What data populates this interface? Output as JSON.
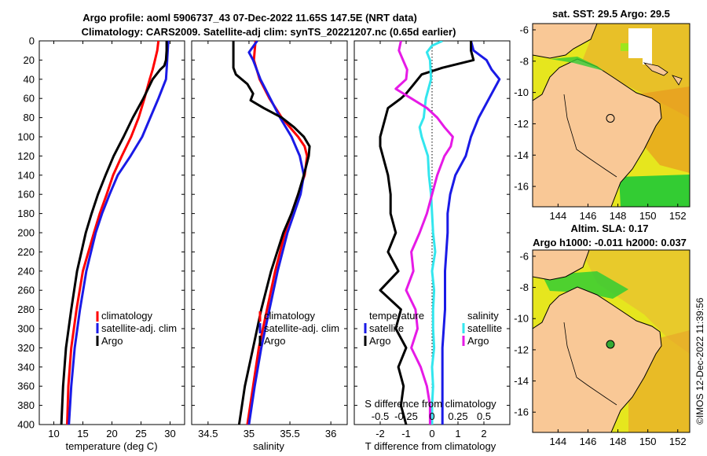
{
  "title": {
    "line1": "Argo profile: aoml 5906737_43 07-Dec-2022 11.65S 147.5E (NRT data)",
    "line2": "Climatology: CARS2009. Satellite-adj clim: synTS_20221207.nc (0.65d earlier)"
  },
  "timestamp": "©IMOS 12-Dec-2022 11:39:56",
  "colors": {
    "climatology": "#ff0000",
    "satellite": "#1a1ae6",
    "argo": "#000000",
    "salinity_diff": "#33e6ee",
    "argo_salinity_diff": "#e61ae6",
    "land": "#f9c896",
    "sst_base": "#e6e61e",
    "sst_green": "#33cc33",
    "sst_orange": "#e89a1e"
  },
  "depth_axis": {
    "ticks": [
      "0",
      "20",
      "40",
      "60",
      "80",
      "100",
      "120",
      "140",
      "160",
      "180",
      "200",
      "220",
      "240",
      "260",
      "280",
      "300",
      "320",
      "340",
      "360",
      "380",
      "400"
    ],
    "range": [
      0,
      400
    ]
  },
  "chart_data": [
    {
      "type": "line",
      "id": "temperature",
      "xlabel": "temperature (deg C)",
      "xlim": [
        7.5,
        32.5
      ],
      "xticks": [
        "10",
        "15",
        "20",
        "25",
        "30"
      ],
      "ylim": [
        0,
        400
      ],
      "legend": [
        "climatology",
        "satellite-adj. clim",
        "Argo"
      ],
      "series": [
        {
          "name": "climatology",
          "color_key": "climatology",
          "depth": [
            0,
            10,
            20,
            30,
            40,
            60,
            80,
            100,
            120,
            140,
            160,
            180,
            200,
            240,
            280,
            320,
            360,
            400
          ],
          "values": [
            28.0,
            27.8,
            27.4,
            27.0,
            26.5,
            25.6,
            24.6,
            23.3,
            21.7,
            20.2,
            19.1,
            17.9,
            16.9,
            15.0,
            13.9,
            13.0,
            12.5,
            12.3
          ]
        },
        {
          "name": "satellite-adj. clim",
          "color_key": "satellite",
          "depth": [
            0,
            10,
            20,
            30,
            40,
            60,
            80,
            100,
            120,
            140,
            160,
            180,
            200,
            240,
            280,
            320,
            360,
            400
          ],
          "values": [
            29.7,
            29.6,
            29.5,
            29.4,
            29.3,
            28.0,
            26.6,
            25.2,
            23.2,
            21.0,
            19.6,
            18.3,
            17.2,
            15.6,
            14.5,
            13.6,
            13.0,
            12.6
          ]
        },
        {
          "name": "Argo",
          "color_key": "argo",
          "depth": [
            0,
            10,
            20,
            26,
            30,
            40,
            50,
            60,
            80,
            100,
            120,
            140,
            160,
            180,
            200,
            240,
            280,
            320,
            360,
            400
          ],
          "values": [
            29.4,
            29.4,
            29.3,
            29.0,
            28.3,
            27.0,
            26.2,
            25.4,
            23.6,
            22.0,
            20.3,
            18.9,
            17.6,
            16.5,
            15.5,
            14.0,
            13.0,
            12.1,
            11.6,
            11.3
          ]
        }
      ]
    },
    {
      "type": "line",
      "id": "salinity",
      "xlabel": "salinity",
      "xlim": [
        34.3,
        36.2
      ],
      "xticks": [
        "34.5",
        "35",
        "35.5",
        "36"
      ],
      "ylim": [
        0,
        400
      ],
      "legend": [
        "climatology",
        "satellite-adj. clim",
        "Argo"
      ],
      "series": [
        {
          "name": "climatology",
          "color_key": "climatology",
          "depth": [
            0,
            10,
            20,
            40,
            60,
            80,
            100,
            110,
            120,
            140,
            160,
            180,
            200,
            240,
            280,
            320,
            360,
            400
          ],
          "values": [
            35.08,
            35.07,
            35.06,
            35.13,
            35.25,
            35.4,
            35.6,
            35.68,
            35.71,
            35.68,
            35.6,
            35.52,
            35.44,
            35.32,
            35.22,
            35.12,
            35.05,
            34.98
          ]
        },
        {
          "name": "satellite-adj. clim",
          "color_key": "satellite",
          "depth": [
            0,
            6,
            12,
            20,
            40,
            60,
            80,
            100,
            120,
            140,
            160,
            180,
            200,
            240,
            280,
            320,
            360,
            400
          ],
          "values": [
            35.1,
            35.05,
            35.0,
            35.05,
            35.14,
            35.26,
            35.38,
            35.52,
            35.62,
            35.67,
            35.63,
            35.55,
            35.47,
            35.35,
            35.25,
            35.15,
            35.07,
            35.0
          ]
        },
        {
          "name": "Argo",
          "color_key": "argo",
          "depth": [
            0,
            10,
            20,
            28,
            35,
            45,
            55,
            62,
            70,
            80,
            90,
            100,
            110,
            120,
            130,
            140,
            160,
            180,
            200,
            240,
            280,
            320,
            360,
            400
          ],
          "values": [
            34.81,
            34.81,
            34.81,
            34.81,
            34.84,
            34.98,
            35.05,
            35.02,
            35.18,
            35.4,
            35.55,
            35.67,
            35.74,
            35.73,
            35.7,
            35.67,
            35.6,
            35.52,
            35.42,
            35.27,
            35.15,
            35.05,
            34.95,
            34.88
          ]
        }
      ]
    },
    {
      "type": "line",
      "id": "difference",
      "xlabel": "T difference from climatology",
      "xlim": [
        -3,
        3
      ],
      "xticks": [
        "-2",
        "-1",
        "0",
        "1",
        "2"
      ],
      "top_label": "S difference from climatology",
      "top_ticks": [
        "-0.5",
        "-0.25",
        "0",
        "0.25",
        "0.5"
      ],
      "ylim": [
        0,
        400
      ],
      "legend": [
        "temperature",
        "satellite",
        "Argo",
        "salinity",
        "satellite",
        "Argo"
      ],
      "series": [
        {
          "name": "temperature satellite",
          "color_key": "satellite",
          "depth": [
            0,
            10,
            20,
            30,
            40,
            60,
            80,
            100,
            120,
            140,
            160,
            180,
            200,
            240,
            280,
            320,
            360,
            400
          ],
          "values": [
            1.5,
            1.6,
            2.1,
            2.3,
            2.6,
            2.2,
            1.8,
            1.5,
            1.3,
            0.9,
            0.7,
            0.6,
            0.6,
            0.5,
            0.5,
            0.4,
            0.4,
            0.4
          ]
        },
        {
          "name": "temperature Argo",
          "color_key": "argo",
          "depth": [
            0,
            10,
            20,
            28,
            35,
            45,
            55,
            60,
            70,
            80,
            90,
            100,
            110,
            120,
            140,
            160,
            180,
            200,
            220,
            240,
            260,
            280,
            300,
            320,
            340,
            360,
            380,
            400
          ],
          "values": [
            1.5,
            1.5,
            1.6,
            0.4,
            -0.4,
            -0.7,
            -1.0,
            -1.2,
            -1.7,
            -1.8,
            -1.9,
            -2.0,
            -2.0,
            -1.9,
            -1.7,
            -1.6,
            -1.6,
            -1.4,
            -1.7,
            -1.3,
            -2.0,
            -1.2,
            -1.4,
            -1.0,
            -1.3,
            -1.1,
            -1.2,
            -1.0
          ]
        },
        {
          "name": "salinity satellite",
          "color_key": "salinity_diff",
          "depth": [
            0,
            5,
            12,
            20,
            40,
            60,
            80,
            90,
            100,
            120,
            140,
            160,
            180,
            200,
            220,
            240,
            260,
            280,
            300,
            320,
            340,
            360,
            380,
            400
          ],
          "values": [
            0.1,
            0.0,
            -0.05,
            -0.02,
            -0.01,
            -0.06,
            -0.08,
            -0.12,
            -0.1,
            -0.04,
            -0.03,
            -0.01,
            0.0,
            0.01,
            0.03,
            0.0,
            0.02,
            0.01,
            0.01,
            0.02,
            0.0,
            0.01,
            0.0,
            0.0
          ]
        },
        {
          "name": "salinity Argo",
          "color_key": "argo_salinity_diff",
          "depth": [
            0,
            10,
            20,
            30,
            40,
            50,
            60,
            70,
            80,
            90,
            100,
            110,
            120,
            140,
            160,
            180,
            200,
            220,
            240,
            260,
            280,
            300,
            320,
            340,
            360,
            380,
            400
          ],
          "values": [
            -0.3,
            -0.32,
            -0.28,
            -0.24,
            -0.25,
            -0.35,
            -0.2,
            -0.05,
            0.05,
            0.12,
            0.2,
            0.18,
            0.12,
            0.05,
            0.0,
            -0.05,
            -0.12,
            -0.2,
            -0.18,
            -0.25,
            -0.16,
            -0.14,
            -0.2,
            -0.11,
            -0.05,
            -0.02,
            -0.02
          ]
        }
      ]
    },
    {
      "type": "heatmap",
      "id": "sst_map",
      "title": "sat. SST: 29.5 Argo: 29.5",
      "xticks": [
        "144",
        "146",
        "148",
        "150",
        "152"
      ],
      "yticks": [
        "-6",
        "-8",
        "-10",
        "-12",
        "-14",
        "-16"
      ],
      "xlim": [
        142.3,
        152.8
      ],
      "ylim": [
        -17.3,
        -5.6
      ],
      "argo_location": {
        "lon": 147.5,
        "lat": -11.65
      }
    },
    {
      "type": "heatmap",
      "id": "sla_map",
      "title": "Altim. SLA: 0.17",
      "subtitle": "Argo h1000: -0.011 h2000: 0.037",
      "xticks": [
        "144",
        "146",
        "148",
        "150",
        "152"
      ],
      "yticks": [
        "-6",
        "-8",
        "-10",
        "-12",
        "-14",
        "-16"
      ],
      "xlim": [
        142.3,
        152.8
      ],
      "ylim": [
        -17.3,
        -5.6
      ],
      "argo_location": {
        "lon": 147.5,
        "lat": -11.65
      }
    }
  ]
}
